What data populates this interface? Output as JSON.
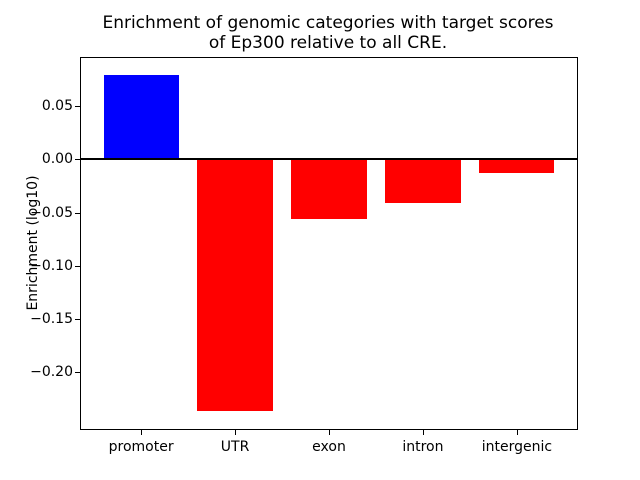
{
  "figure": {
    "title_line1": "Enrichment of genomic categories with target scores",
    "title_line2": "of Ep300 relative to all CRE."
  },
  "chart_data": {
    "type": "bar",
    "title": "Enrichment of genomic categories with target scores\nof Ep300 relative to all CRE.",
    "xlabel": "",
    "ylabel": "Enrichment (log10)",
    "categories": [
      "promoter",
      "UTR",
      "exon",
      "intron",
      "intergenic"
    ],
    "values": [
      0.079,
      -0.236,
      -0.056,
      -0.041,
      -0.013
    ],
    "bar_colors": [
      "#0000ff",
      "#ff0000",
      "#ff0000",
      "#ff0000",
      "#ff0000"
    ],
    "yticks": [
      0.05,
      0.0,
      -0.05,
      -0.1,
      -0.15,
      -0.2
    ],
    "ylim": [
      -0.253,
      0.095
    ],
    "xlim": [
      -0.64,
      4.64
    ],
    "bar_width": 0.8,
    "zero_line": true,
    "grid": false,
    "legend_position": "none",
    "background_color": "#ffffff",
    "axis_color": "#000000"
  }
}
